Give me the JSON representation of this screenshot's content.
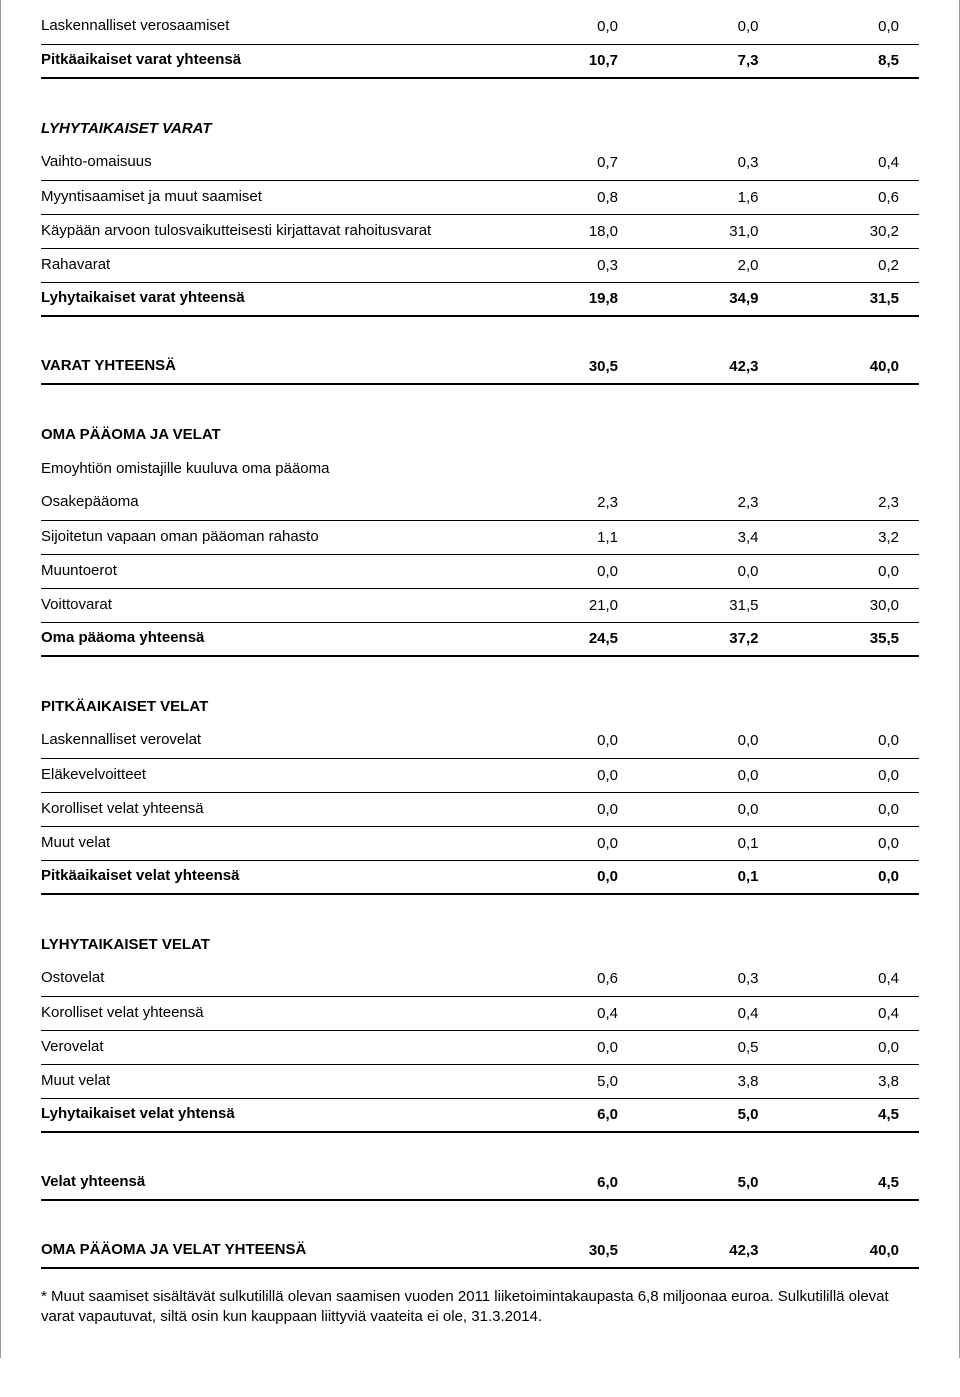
{
  "table": {
    "columns": [
      {
        "key": "label",
        "align": "left",
        "width": "52%"
      },
      {
        "key": "v1",
        "align": "right",
        "width": "16%"
      },
      {
        "key": "v2",
        "align": "right",
        "width": "16%"
      },
      {
        "key": "v3",
        "align": "right",
        "width": "16%"
      }
    ],
    "font_family": "Arial",
    "font_size": 15,
    "border_color": "#000000",
    "background_color": "#ffffff",
    "rows": [
      {
        "type": "data",
        "line": true,
        "label": "Laskennalliset verosaamiset",
        "v1": "0,0",
        "v2": "0,0",
        "v3": "0,0"
      },
      {
        "type": "data",
        "thick": true,
        "bold": true,
        "label": "Pitkäaikaiset varat yhteensä",
        "v1": "10,7",
        "v2": "7,3",
        "v3": "8,5"
      },
      {
        "type": "spacer"
      },
      {
        "type": "header",
        "italic": true,
        "label": "LYHYTAIKAISET VARAT"
      },
      {
        "type": "data",
        "line": true,
        "label": "Vaihto-omaisuus",
        "v1": "0,7",
        "v2": "0,3",
        "v3": "0,4"
      },
      {
        "type": "data",
        "line": true,
        "label": "Myyntisaamiset ja muut saamiset",
        "v1": "0,8",
        "v2": "1,6",
        "v3": "0,6"
      },
      {
        "type": "data",
        "line": true,
        "label": "Käypään arvoon tulosvaikutteisesti kirjattavat rahoitusvarat",
        "v1": "18,0",
        "v2": "31,0",
        "v3": "30,2"
      },
      {
        "type": "data",
        "line": true,
        "label": "Rahavarat",
        "v1": "0,3",
        "v2": "2,0",
        "v3": "0,2"
      },
      {
        "type": "data",
        "thick": true,
        "bold": true,
        "label": "Lyhytaikaiset varat yhteensä",
        "v1": "19,8",
        "v2": "34,9",
        "v3": "31,5"
      },
      {
        "type": "spacer"
      },
      {
        "type": "data",
        "thick": true,
        "bold": true,
        "label": "VARAT YHTEENSÄ",
        "v1": "30,5",
        "v2": "42,3",
        "v3": "40,0"
      },
      {
        "type": "spacer"
      },
      {
        "type": "header",
        "label": "OMA PÄÄOMA JA VELAT"
      },
      {
        "type": "data",
        "label": "Emoyhtiön omistajille kuuluva oma pääoma"
      },
      {
        "type": "data",
        "line": true,
        "label": "Osakepääoma",
        "v1": "2,3",
        "v2": "2,3",
        "v3": "2,3"
      },
      {
        "type": "data",
        "line": true,
        "label": "Sijoitetun vapaan oman pääoman rahasto",
        "v1": "1,1",
        "v2": "3,4",
        "v3": "3,2"
      },
      {
        "type": "data",
        "line": true,
        "label": "Muuntoerot",
        "v1": "0,0",
        "v2": "0,0",
        "v3": "0,0"
      },
      {
        "type": "data",
        "line": true,
        "label": "Voittovarat",
        "v1": "21,0",
        "v2": "31,5",
        "v3": "30,0"
      },
      {
        "type": "data",
        "thick": true,
        "bold": true,
        "label": "Oma pääoma yhteensä",
        "v1": "24,5",
        "v2": "37,2",
        "v3": "35,5"
      },
      {
        "type": "spacer"
      },
      {
        "type": "header",
        "label": "PITKÄAIKAISET VELAT"
      },
      {
        "type": "data",
        "line": true,
        "label": "Laskennalliset verovelat",
        "v1": "0,0",
        "v2": "0,0",
        "v3": "0,0"
      },
      {
        "type": "data",
        "line": true,
        "label": "Eläkevelvoitteet",
        "v1": "0,0",
        "v2": "0,0",
        "v3": "0,0"
      },
      {
        "type": "data",
        "line": true,
        "label": "Korolliset velat yhteensä",
        "v1": "0,0",
        "v2": "0,0",
        "v3": "0,0"
      },
      {
        "type": "data",
        "line": true,
        "label": "Muut velat",
        "v1": "0,0",
        "v2": "0,1",
        "v3": "0,0"
      },
      {
        "type": "data",
        "thick": true,
        "bold": true,
        "label": "Pitkäaikaiset velat yhteensä",
        "v1": "0,0",
        "v2": "0,1",
        "v3": "0,0"
      },
      {
        "type": "spacer"
      },
      {
        "type": "header",
        "label": "LYHYTAIKAISET VELAT"
      },
      {
        "type": "data",
        "line": true,
        "label": "Ostovelat",
        "v1": "0,6",
        "v2": "0,3",
        "v3": "0,4"
      },
      {
        "type": "data",
        "line": true,
        "label": "Korolliset velat yhteensä",
        "v1": "0,4",
        "v2": "0,4",
        "v3": "0,4"
      },
      {
        "type": "data",
        "line": true,
        "label": "Verovelat",
        "v1": "0,0",
        "v2": "0,5",
        "v3": "0,0"
      },
      {
        "type": "data",
        "line": true,
        "label": "Muut velat",
        "v1": "5,0",
        "v2": "3,8",
        "v3": "3,8"
      },
      {
        "type": "data",
        "thick": true,
        "bold": true,
        "label": "Lyhytaikaiset velat yhtensä",
        "v1": "6,0",
        "v2": "5,0",
        "v3": "4,5"
      },
      {
        "type": "spacer"
      },
      {
        "type": "data",
        "thick": true,
        "bold": true,
        "label": "Velat yhteensä",
        "v1": "6,0",
        "v2": "5,0",
        "v3": "4,5"
      },
      {
        "type": "spacer"
      },
      {
        "type": "data",
        "thick": true,
        "bold": true,
        "label": "OMA PÄÄOMA JA VELAT YHTEENSÄ",
        "v1": "30,5",
        "v2": "42,3",
        "v3": "40,0"
      }
    ]
  },
  "footnote": "* Muut saamiset sisältävät sulkutilillä olevan saamisen vuoden 2011 liiketoimintakaupasta 6,8 miljoonaa euroa. Sulkutilillä olevat varat vapautuvat, siltä osin kun kauppaan liittyviä vaateita ei ole, 31.3.2014."
}
